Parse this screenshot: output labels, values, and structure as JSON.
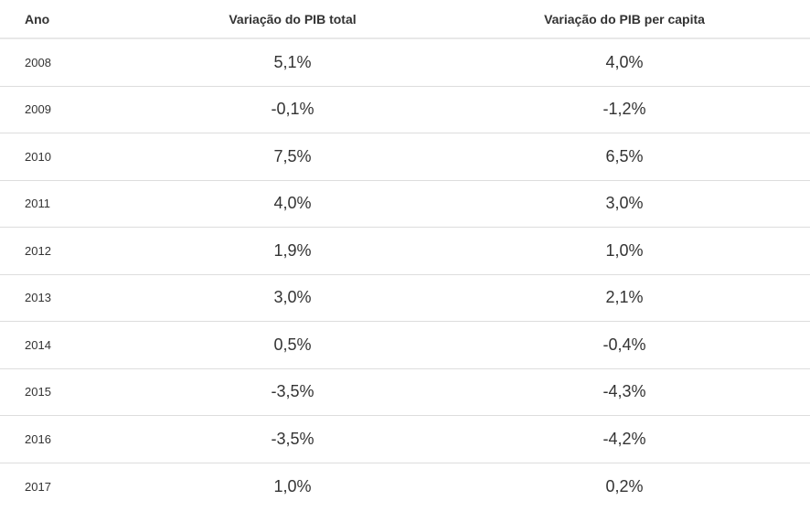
{
  "chart_data": {
    "type": "table",
    "columns": [
      "Ano",
      "Variação do PIB total",
      "Variação do PIB per capita"
    ],
    "rows": [
      {
        "year": "2008",
        "gdp_total": "5,1%",
        "gdp_per_capita": "4,0%"
      },
      {
        "year": "2009",
        "gdp_total": "-0,1%",
        "gdp_per_capita": "-1,2%"
      },
      {
        "year": "2010",
        "gdp_total": "7,5%",
        "gdp_per_capita": "6,5%"
      },
      {
        "year": "2011",
        "gdp_total": "4,0%",
        "gdp_per_capita": "3,0%"
      },
      {
        "year": "2012",
        "gdp_total": "1,9%",
        "gdp_per_capita": "1,0%"
      },
      {
        "year": "2013",
        "gdp_total": "3,0%",
        "gdp_per_capita": "2,1%"
      },
      {
        "year": "2014",
        "gdp_total": "0,5%",
        "gdp_per_capita": "-0,4%"
      },
      {
        "year": "2015",
        "gdp_total": "-3,5%",
        "gdp_per_capita": "-4,3%"
      },
      {
        "year": "2016",
        "gdp_total": "-3,5%",
        "gdp_per_capita": "-4,2%"
      },
      {
        "year": "2017",
        "gdp_total": "1,0%",
        "gdp_per_capita": "0,2%"
      }
    ]
  }
}
